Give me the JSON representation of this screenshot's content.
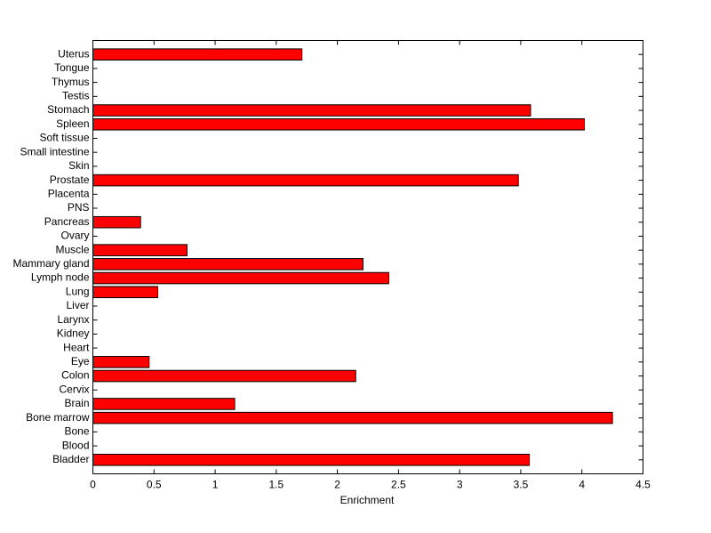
{
  "chart_data": {
    "type": "barh",
    "x_label": "Enrichment",
    "categories": [
      "Bladder",
      "Blood",
      "Bone",
      "Bone marrow",
      "Brain",
      "Cervix",
      "Colon",
      "Eye",
      "Heart",
      "Kidney",
      "Larynx",
      "Liver",
      "Lung",
      "Lymph node",
      "Mammary gland",
      "Muscle",
      "Ovary",
      "Pancreas",
      "PNS",
      "Placenta",
      "Prostate",
      "Skin",
      "Small intestine",
      "Soft tissue",
      "Spleen",
      "Stomach",
      "Testis",
      "Thymus",
      "Tongue",
      "Uterus"
    ],
    "values": [
      3.57,
      0,
      0,
      4.25,
      1.16,
      0,
      2.15,
      0.46,
      0,
      0,
      0,
      0,
      0.53,
      2.42,
      2.21,
      0.77,
      0,
      0.39,
      0,
      0,
      3.48,
      0,
      0,
      0,
      4.02,
      3.58,
      0,
      0,
      0,
      1.71
    ],
    "color": "#ff0000",
    "xlim": [
      0,
      4.5
    ],
    "xticks": [
      0,
      0.5,
      1,
      1.5,
      2,
      2.5,
      3,
      3.5,
      4,
      4.5
    ]
  }
}
